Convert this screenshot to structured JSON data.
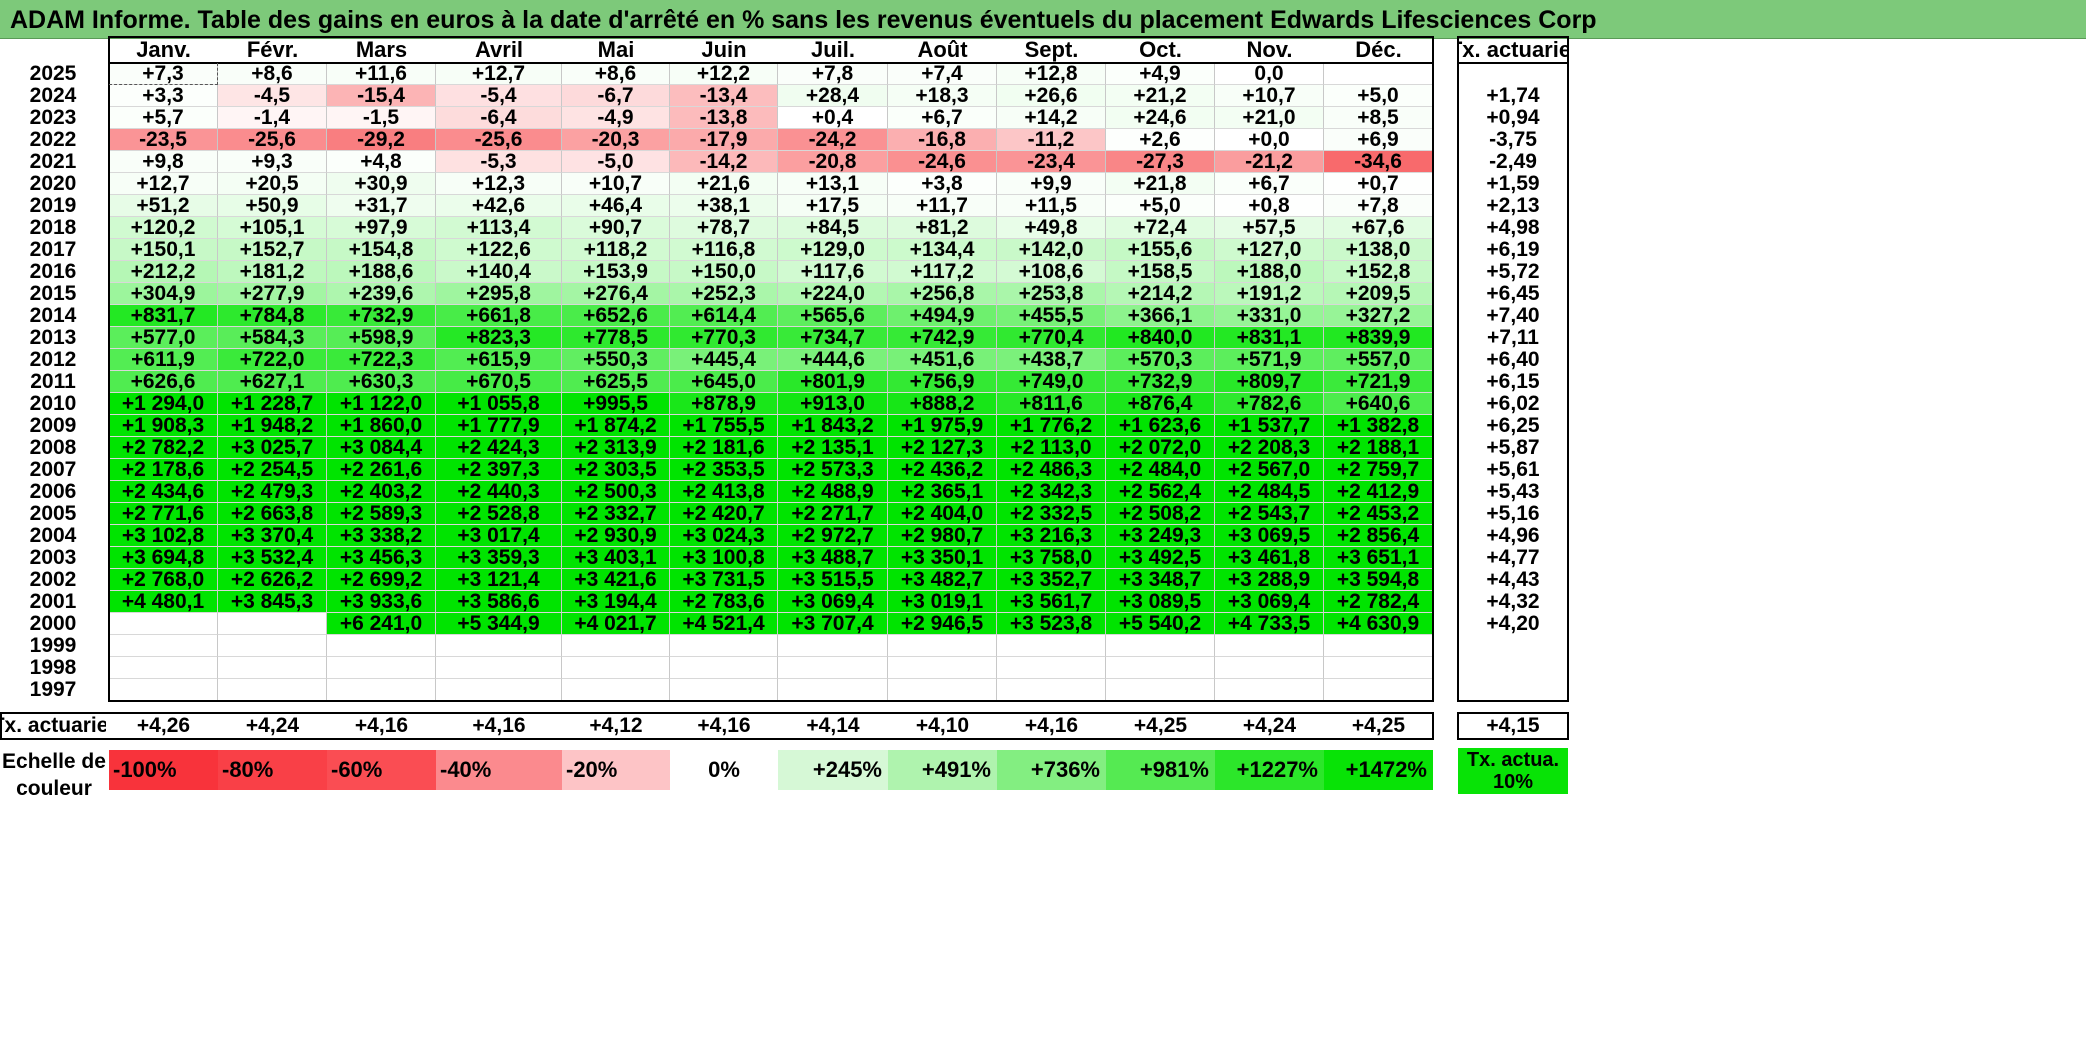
{
  "title": "ADAM Informe. Table des gains en euros à la date d'arrêté en % sans les revenus éventuels du placement Edwards Lifesciences Corp",
  "months": [
    "Janv.",
    "Févr.",
    "Mars",
    "Avril",
    "Mai",
    "Juin",
    "Juil.",
    "Août",
    "Sept.",
    "Oct.",
    "Nov.",
    "Déc."
  ],
  "rate_header": "Tx. actuariel",
  "rows": [
    {
      "year": "2025",
      "values": [
        "+7,3",
        "+8,6",
        "+11,6",
        "+12,7",
        "+8,6",
        "+12,2",
        "+7,8",
        "+7,4",
        "+12,8",
        "+4,9",
        "0,0",
        ""
      ],
      "rate": ""
    },
    {
      "year": "2024",
      "values": [
        "+3,3",
        "-4,5",
        "-15,4",
        "-5,4",
        "-6,7",
        "-13,4",
        "+28,4",
        "+18,3",
        "+26,6",
        "+21,2",
        "+10,7",
        "+5,0"
      ],
      "rate": "+1,74"
    },
    {
      "year": "2023",
      "values": [
        "+5,7",
        "-1,4",
        "-1,5",
        "-6,4",
        "-4,9",
        "-13,8",
        "+0,4",
        "+6,7",
        "+14,2",
        "+24,6",
        "+21,0",
        "+8,5"
      ],
      "rate": "+0,94"
    },
    {
      "year": "2022",
      "values": [
        "-23,5",
        "-25,6",
        "-29,2",
        "-25,6",
        "-20,3",
        "-17,9",
        "-24,2",
        "-16,8",
        "-11,2",
        "+2,6",
        "+0,0",
        "+6,9"
      ],
      "rate": "-3,75"
    },
    {
      "year": "2021",
      "values": [
        "+9,8",
        "+9,3",
        "+4,8",
        "-5,3",
        "-5,0",
        "-14,2",
        "-20,8",
        "-24,6",
        "-23,4",
        "-27,3",
        "-21,2",
        "-34,6"
      ],
      "rate": "-2,49"
    },
    {
      "year": "2020",
      "values": [
        "+12,7",
        "+20,5",
        "+30,9",
        "+12,3",
        "+10,7",
        "+21,6",
        "+13,1",
        "+3,8",
        "+9,9",
        "+21,8",
        "+6,7",
        "+0,7"
      ],
      "rate": "+1,59"
    },
    {
      "year": "2019",
      "values": [
        "+51,2",
        "+50,9",
        "+31,7",
        "+42,6",
        "+46,4",
        "+38,1",
        "+17,5",
        "+11,7",
        "+11,5",
        "+5,0",
        "+0,8",
        "+7,8"
      ],
      "rate": "+2,13"
    },
    {
      "year": "2018",
      "values": [
        "+120,2",
        "+105,1",
        "+97,9",
        "+113,4",
        "+90,7",
        "+78,7",
        "+84,5",
        "+81,2",
        "+49,8",
        "+72,4",
        "+57,5",
        "+67,6"
      ],
      "rate": "+4,98"
    },
    {
      "year": "2017",
      "values": [
        "+150,1",
        "+152,7",
        "+154,8",
        "+122,6",
        "+118,2",
        "+116,8",
        "+129,0",
        "+134,4",
        "+142,0",
        "+155,6",
        "+127,0",
        "+138,0"
      ],
      "rate": "+6,19"
    },
    {
      "year": "2016",
      "values": [
        "+212,2",
        "+181,2",
        "+188,6",
        "+140,4",
        "+153,9",
        "+150,0",
        "+117,6",
        "+117,2",
        "+108,6",
        "+158,5",
        "+188,0",
        "+152,8"
      ],
      "rate": "+5,72"
    },
    {
      "year": "2015",
      "values": [
        "+304,9",
        "+277,9",
        "+239,6",
        "+295,8",
        "+276,4",
        "+252,3",
        "+224,0",
        "+256,8",
        "+253,8",
        "+214,2",
        "+191,2",
        "+209,5"
      ],
      "rate": "+6,45"
    },
    {
      "year": "2014",
      "values": [
        "+831,7",
        "+784,8",
        "+732,9",
        "+661,8",
        "+652,6",
        "+614,4",
        "+565,6",
        "+494,9",
        "+455,5",
        "+366,1",
        "+331,0",
        "+327,2"
      ],
      "rate": "+7,40"
    },
    {
      "year": "2013",
      "values": [
        "+577,0",
        "+584,3",
        "+598,9",
        "+823,3",
        "+778,5",
        "+770,3",
        "+734,7",
        "+742,9",
        "+770,4",
        "+840,0",
        "+831,1",
        "+839,9"
      ],
      "rate": "+7,11"
    },
    {
      "year": "2012",
      "values": [
        "+611,9",
        "+722,0",
        "+722,3",
        "+615,9",
        "+550,3",
        "+445,4",
        "+444,6",
        "+451,6",
        "+438,7",
        "+570,3",
        "+571,9",
        "+557,0"
      ],
      "rate": "+6,40"
    },
    {
      "year": "2011",
      "values": [
        "+626,6",
        "+627,1",
        "+630,3",
        "+670,5",
        "+625,5",
        "+645,0",
        "+801,9",
        "+756,9",
        "+749,0",
        "+732,9",
        "+809,7",
        "+721,9"
      ],
      "rate": "+6,15"
    },
    {
      "year": "2010",
      "values": [
        "+1 294,0",
        "+1 228,7",
        "+1 122,0",
        "+1 055,8",
        "+995,5",
        "+878,9",
        "+913,0",
        "+888,2",
        "+811,6",
        "+876,4",
        "+782,6",
        "+640,6"
      ],
      "rate": "+6,02"
    },
    {
      "year": "2009",
      "values": [
        "+1 908,3",
        "+1 948,2",
        "+1 860,0",
        "+1 777,9",
        "+1 874,2",
        "+1 755,5",
        "+1 843,2",
        "+1 975,9",
        "+1 776,2",
        "+1 623,6",
        "+1 537,7",
        "+1 382,8"
      ],
      "rate": "+6,25"
    },
    {
      "year": "2008",
      "values": [
        "+2 782,2",
        "+3 025,7",
        "+3 084,4",
        "+2 424,3",
        "+2 313,9",
        "+2 181,6",
        "+2 135,1",
        "+2 127,3",
        "+2 113,0",
        "+2 072,0",
        "+2 208,3",
        "+2 188,1"
      ],
      "rate": "+5,87"
    },
    {
      "year": "2007",
      "values": [
        "+2 178,6",
        "+2 254,5",
        "+2 261,6",
        "+2 397,3",
        "+2 303,5",
        "+2 353,5",
        "+2 573,3",
        "+2 436,2",
        "+2 486,3",
        "+2 484,0",
        "+2 567,0",
        "+2 759,7"
      ],
      "rate": "+5,61"
    },
    {
      "year": "2006",
      "values": [
        "+2 434,6",
        "+2 479,3",
        "+2 403,2",
        "+2 440,3",
        "+2 500,3",
        "+2 413,8",
        "+2 488,9",
        "+2 365,1",
        "+2 342,3",
        "+2 562,4",
        "+2 484,5",
        "+2 412,9"
      ],
      "rate": "+5,43"
    },
    {
      "year": "2005",
      "values": [
        "+2 771,6",
        "+2 663,8",
        "+2 589,3",
        "+2 528,8",
        "+2 332,7",
        "+2 420,7",
        "+2 271,7",
        "+2 404,0",
        "+2 332,5",
        "+2 508,2",
        "+2 543,7",
        "+2 453,2"
      ],
      "rate": "+5,16"
    },
    {
      "year": "2004",
      "values": [
        "+3 102,8",
        "+3 370,4",
        "+3 338,2",
        "+3 017,4",
        "+2 930,9",
        "+3 024,3",
        "+2 972,7",
        "+2 980,7",
        "+3 216,3",
        "+3 249,3",
        "+3 069,5",
        "+2 856,4"
      ],
      "rate": "+4,96"
    },
    {
      "year": "2003",
      "values": [
        "+3 694,8",
        "+3 532,4",
        "+3 456,3",
        "+3 359,3",
        "+3 403,1",
        "+3 100,8",
        "+3 488,7",
        "+3 350,1",
        "+3 758,0",
        "+3 492,5",
        "+3 461,8",
        "+3 651,1"
      ],
      "rate": "+4,77"
    },
    {
      "year": "2002",
      "values": [
        "+2 768,0",
        "+2 626,2",
        "+2 699,2",
        "+3 121,4",
        "+3 421,6",
        "+3 731,5",
        "+3 515,5",
        "+3 482,7",
        "+3 352,7",
        "+3 348,7",
        "+3 288,9",
        "+3 594,8"
      ],
      "rate": "+4,43"
    },
    {
      "year": "2001",
      "values": [
        "+4 480,1",
        "+3 845,3",
        "+3 933,6",
        "+3 586,6",
        "+3 194,4",
        "+2 783,6",
        "+3 069,4",
        "+3 019,1",
        "+3 561,7",
        "+3 089,5",
        "+3 069,4",
        "+2 782,4"
      ],
      "rate": "+4,32"
    },
    {
      "year": "2000",
      "values": [
        "",
        "",
        "+6 241,0",
        "+5 344,9",
        "+4 021,7",
        "+4 521,4",
        "+3 707,4",
        "+2 946,5",
        "+3 523,8",
        "+5 540,2",
        "+4 733,5",
        "+4 630,9"
      ],
      "rate": "+4,20"
    },
    {
      "year": "1999",
      "values": [
        "",
        "",
        "",
        "",
        "",
        "",
        "",
        "",
        "",
        "",
        "",
        ""
      ],
      "rate": ""
    },
    {
      "year": "1998",
      "values": [
        "",
        "",
        "",
        "",
        "",
        "",
        "",
        "",
        "",
        "",
        "",
        ""
      ],
      "rate": ""
    },
    {
      "year": "1997",
      "values": [
        "",
        "",
        "",
        "",
        "",
        "",
        "",
        "",
        "",
        "",
        "",
        ""
      ],
      "rate": ""
    }
  ],
  "footer": {
    "label": "Tx. actuariel",
    "values": [
      "+4,26",
      "+4,24",
      "+4,16",
      "+4,16",
      "+4,12",
      "+4,16",
      "+4,14",
      "+4,10",
      "+4,16",
      "+4,25",
      "+4,24",
      "+4,25"
    ],
    "rate": "+4,15"
  },
  "legend": {
    "label": "Echelle de couleur",
    "steps": [
      {
        "text": "-100%",
        "color": "#f8333b"
      },
      {
        "text": "-80%",
        "color": "#f94047"
      },
      {
        "text": "-60%",
        "color": "#fa4d53"
      },
      {
        "text": "-40%",
        "color": "#fb8a8e"
      },
      {
        "text": "-20%",
        "color": "#fdc4c6"
      },
      {
        "text": "0%",
        "color": "#ffffff"
      },
      {
        "text": "+245%",
        "color": "#d6f8d6"
      },
      {
        "text": "+491%",
        "color": "#aff3ae"
      },
      {
        "text": "+736%",
        "color": "#83ee81"
      },
      {
        "text": "+981%",
        "color": "#55ea52"
      },
      {
        "text": "+1227%",
        "color": "#2ce62a"
      },
      {
        "text": "+1472%",
        "color": "#08e306"
      }
    ],
    "rate_box": {
      "text": "Tx. actua. 10%",
      "color": "#08e306"
    }
  },
  "colors": {
    "title_bg": "#7dc97a",
    "negative_max": "#f8696b",
    "positive_max": "#00e400"
  }
}
